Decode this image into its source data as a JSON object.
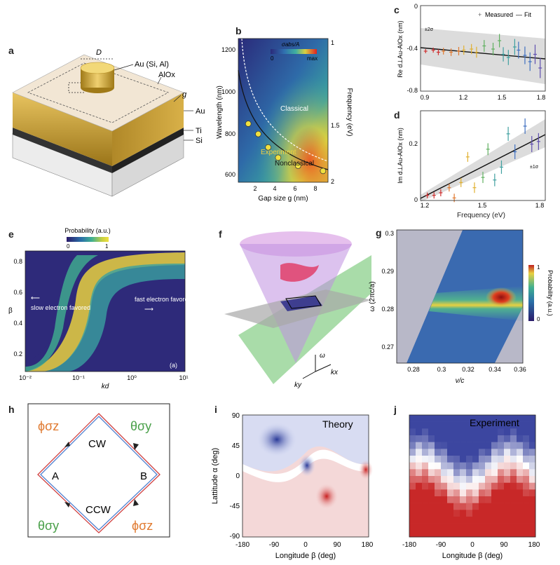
{
  "labels": {
    "a": "a",
    "b": "b",
    "c": "c",
    "d": "d",
    "e": "e",
    "f": "f",
    "g": "g",
    "h": "h",
    "i": "i",
    "j": "j"
  },
  "panel_a": {
    "D": "D",
    "top": "Au (Si, Al)",
    "alox": "AlOx",
    "g": "g",
    "au": "Au",
    "ti": "Ti",
    "si": "Si"
  },
  "panel_b": {
    "colorbar_title": "σabs/A",
    "cb_min": "0",
    "cb_max": "max",
    "ylabel": "Wavelength (nm)",
    "xlabel": "Gap size  g  (nm)",
    "y2label": "Frequency (eV)",
    "classical": "Classical",
    "experiment": "Experiment",
    "nonclassical": "Nonclassical",
    "yticks": [
      "1200",
      "1000",
      "800",
      "600"
    ],
    "xticks": [
      "2",
      "4",
      "6",
      "8"
    ],
    "y2ticks": [
      "1",
      "1.5",
      "2"
    ],
    "points": [
      {
        "g": 1,
        "wl": 885
      },
      {
        "g": 2,
        "wl": 835
      },
      {
        "g": 3,
        "wl": 770
      },
      {
        "g": 4,
        "wl": 720
      },
      {
        "g": 6,
        "wl": 680
      },
      {
        "g": 8.5,
        "wl": 655
      }
    ]
  },
  "panel_c": {
    "legend_measured": "Measured",
    "legend_fit": "Fit",
    "band": "±2σ",
    "ylabel": "Re d⊥Au-AlOx (nm)",
    "yticks": [
      "0",
      "-0.4",
      "-0.8"
    ],
    "xticks": [
      "0.9",
      "1.2",
      "1.5",
      "1.8"
    ],
    "points": [
      [
        0.92,
        -0.42
      ],
      [
        0.98,
        -0.41
      ],
      [
        1.02,
        -0.43
      ],
      [
        1.06,
        -0.42
      ],
      [
        1.12,
        -0.43
      ],
      [
        1.18,
        -0.42
      ],
      [
        1.22,
        -0.41
      ],
      [
        1.28,
        -0.4
      ],
      [
        1.32,
        -0.43
      ],
      [
        1.38,
        -0.37
      ],
      [
        1.45,
        -0.4
      ],
      [
        1.5,
        -0.32
      ],
      [
        1.53,
        -0.45
      ],
      [
        1.57,
        -0.48
      ],
      [
        1.62,
        -0.38
      ],
      [
        1.65,
        -0.41
      ],
      [
        1.7,
        -0.46
      ],
      [
        1.74,
        -0.52
      ],
      [
        1.78,
        -0.45
      ],
      [
        1.82,
        -0.58
      ]
    ]
  },
  "panel_d": {
    "ylabel": "Im d⊥Au-AlOx (nm)",
    "xlabel": "Frequency (eV)",
    "band": "±1σ",
    "yticks": [
      "0",
      "0.2"
    ],
    "xticks": [
      "1.2",
      "1.5",
      "1.8"
    ],
    "points": [
      [
        1.2,
        0.02
      ],
      [
        1.24,
        0.02
      ],
      [
        1.28,
        0.03
      ],
      [
        1.33,
        0.05
      ],
      [
        1.36,
        0.01
      ],
      [
        1.4,
        0.07
      ],
      [
        1.44,
        0.17
      ],
      [
        1.48,
        0.05
      ],
      [
        1.53,
        0.09
      ],
      [
        1.56,
        0.2
      ],
      [
        1.6,
        0.08
      ],
      [
        1.64,
        0.13
      ],
      [
        1.68,
        0.26
      ],
      [
        1.72,
        0.19
      ],
      [
        1.78,
        0.29
      ],
      [
        1.82,
        0.22
      ],
      [
        1.86,
        0.23
      ]
    ]
  },
  "panel_e": {
    "cb_title": "Probability (a.u.)",
    "cb_min": "0",
    "cb_max": "1",
    "ylabel": "β",
    "xlabel": "kd",
    "slow": "slow electron favored",
    "fast": "fast electron favored",
    "tag": "(a)",
    "yticks": [
      "0.8",
      "0.6",
      "0.4",
      "0.2"
    ],
    "xticks": [
      "10⁻²",
      "10⁻¹",
      "10⁰",
      "10¹"
    ]
  },
  "panel_f": {
    "omega": "ω",
    "ky": "ky",
    "kx": "kx"
  },
  "panel_g": {
    "ylabel": "ω (2πc/a)",
    "xlabel": "v/c",
    "cb_title": "Probability (a.u.)",
    "cb_min": "0",
    "cb_max": "1",
    "yticks": [
      "0.3",
      "0.29",
      "0.28",
      "0.27"
    ],
    "xticks": [
      "0.28",
      "0.3",
      "0.32",
      "0.34",
      "0.36"
    ]
  },
  "panel_h": {
    "phi_sz": "ϕσz",
    "theta_sy": "θσy",
    "cw": "CW",
    "ccw": "CCW",
    "a": "A",
    "b": "B"
  },
  "panel_i": {
    "title": "Theory",
    "ylabel": "Lattitude α (deg)",
    "xlabel": "Longitude β (deg)",
    "yticks": [
      "90",
      "45",
      "0",
      "-45",
      "-90"
    ],
    "xticks": [
      "-180",
      "-90",
      "0",
      "90",
      "180"
    ]
  },
  "panel_j": {
    "title": "Experiment",
    "xlabel": "Longitude β (deg)",
    "xticks": [
      "-180",
      "-90",
      "0",
      "90",
      "180"
    ]
  },
  "colors": {
    "gold": "#c8a030",
    "orange": "#e07a30",
    "green": "#4aa04a",
    "blue_map": "#3a4aa0",
    "red_map": "#d03030"
  }
}
